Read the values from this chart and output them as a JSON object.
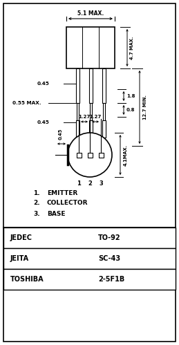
{
  "background_color": "#ffffff",
  "border_color": "#000000",
  "text_color": "#000000",
  "table_rows": [
    {
      "label": "JEDEC",
      "value": "TO-92"
    },
    {
      "label": "JEITA",
      "value": "SC-43"
    },
    {
      "label": "TOSHIBA",
      "value": "2-5F1B"
    }
  ],
  "pin_labels": [
    {
      "num": "1.",
      "name": "EMITTER"
    },
    {
      "num": "2.",
      "name": "COLLECTOR"
    },
    {
      "num": "3.",
      "name": "BASE"
    }
  ]
}
